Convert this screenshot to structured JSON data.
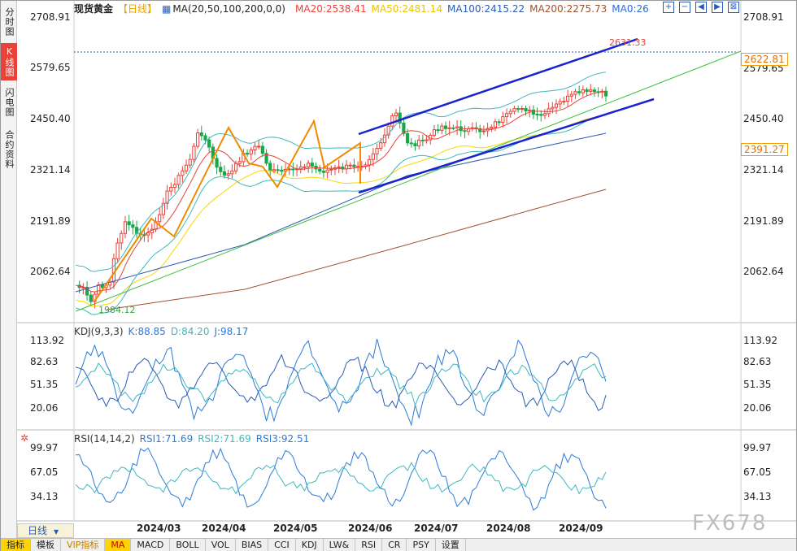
{
  "side_tabs": [
    "分时图",
    "K线图",
    "闪电图",
    "合约资料"
  ],
  "header": {
    "title": "现货黄金",
    "period": "【日线】",
    "ma_params": "MA(20,50,100,200,0,0)",
    "ma20": "MA20:2538.41",
    "ma50": "MA50:2481.14",
    "ma100": "MA100:2415.22",
    "ma200": "MA200:2275.73",
    "ma0": "MA0:26"
  },
  "toolbar_icons": [
    "plus-square-icon",
    "minus-square-icon",
    "arrow-left-icon",
    "arrow-right-icon",
    "shrink-icon"
  ],
  "price_axis": {
    "right": [
      "2708.91",
      "2579.65",
      "2450.40",
      "2321.14",
      "2191.89",
      "2062.64"
    ],
    "left": [
      "2708.91",
      "2579.65",
      "2450.40",
      "2321.14",
      "2191.89",
      "2062.64"
    ],
    "last_price": "2622.81",
    "ma_tag": "2391.27",
    "high_label": "2631.33",
    "low_label": "1984.12"
  },
  "kdj": {
    "title": "KDJ(9,3,3)",
    "k": "K:88.85",
    "d": "D:84.20",
    "j": "J:98.17",
    "axis": [
      "113.92",
      "82.63",
      "51.35",
      "20.06"
    ]
  },
  "rsi": {
    "title": "RSI(14,14,2)",
    "rsi1": "RSI1:71.69",
    "rsi2": "RSI2:71.69",
    "rsi3": "RSI3:92.51",
    "axis": [
      "99.97",
      "67.05",
      "34.13"
    ]
  },
  "dates": [
    "2024/03",
    "2024/04",
    "2024/05",
    "2024/06",
    "2024/07",
    "2024/08",
    "2024/09"
  ],
  "period_box": "日线",
  "bottom_tabs": [
    "指标",
    "模板",
    "VIP指标",
    "MA",
    "MACD",
    "BOLL",
    "VOL",
    "BIAS",
    "CCI",
    "KDJ",
    "LW&",
    "RSI",
    "CR",
    "PSY",
    "设置"
  ],
  "watermark": "FX678",
  "colors": {
    "up": "#e94238",
    "down": "#18a84a",
    "channel": "#1a22d0",
    "zigzag": "#f08c00",
    "ma20": "#e94238",
    "ma50": "#f5d800",
    "ma100": "#2b5bb5",
    "ma200": "#a0522d",
    "trend": "#3fbf3f"
  }
}
